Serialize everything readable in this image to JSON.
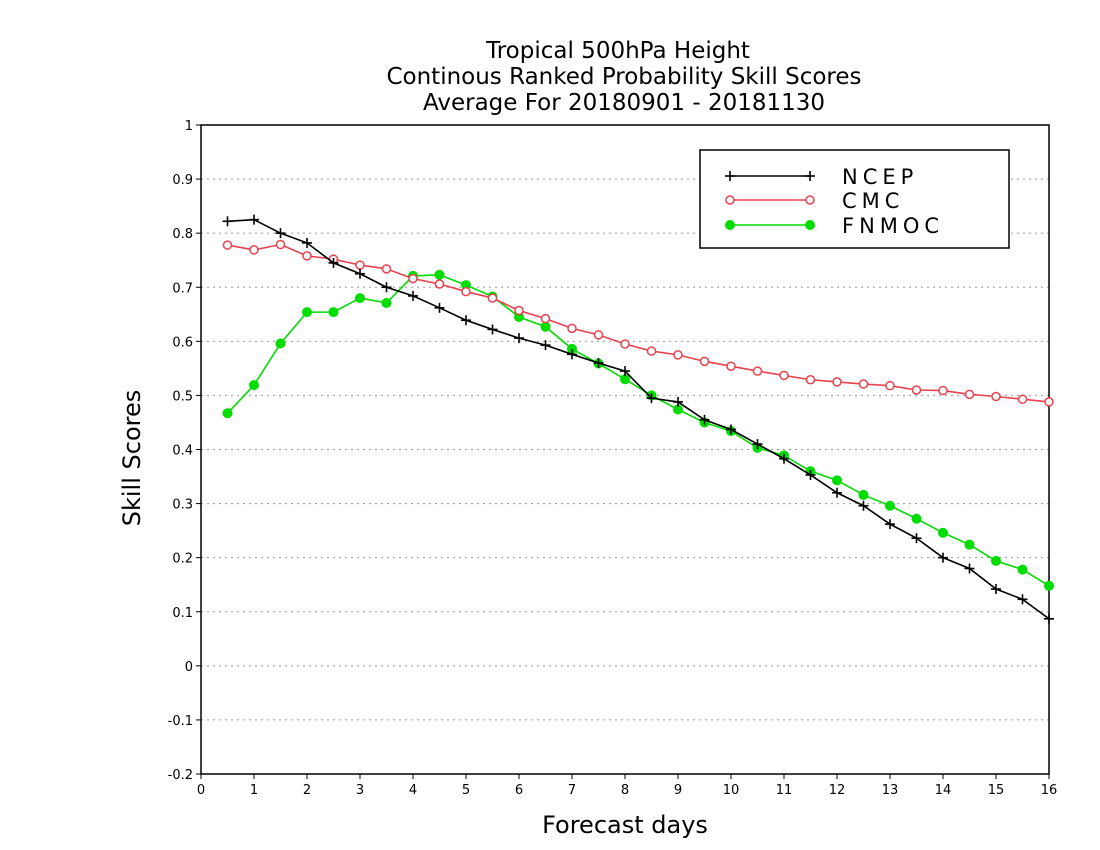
{
  "chart_data": {
    "type": "line",
    "title_lines": [
      "Tropical 500hPa Height",
      "Continous Ranked Probability Skill Scores",
      "Average For 20180901 - 20181130"
    ],
    "xlabel": "Forecast days",
    "ylabel": "Skill Scores",
    "xlim": [
      0,
      16
    ],
    "ylim": [
      -0.2,
      1
    ],
    "x_ticks": [
      0,
      1,
      2,
      3,
      4,
      5,
      6,
      7,
      8,
      9,
      10,
      11,
      12,
      13,
      14,
      15,
      16
    ],
    "x_tick_labels": [
      "0",
      "1",
      "2",
      "3",
      "4",
      "5",
      "6",
      "7",
      "8",
      "9",
      "10",
      "11",
      "12",
      "13",
      "14",
      "15",
      "16"
    ],
    "y_ticks": [
      -0.2,
      -0.1,
      0,
      0.1,
      0.2,
      0.3,
      0.4,
      0.5,
      0.6,
      0.7,
      0.8,
      0.9,
      1
    ],
    "y_tick_labels": [
      "-0.2",
      "-0.1",
      "0",
      "0.1",
      "0.2",
      "0.3",
      "0.4",
      "0.5",
      "0.6",
      "0.7",
      "0.8",
      "0.9",
      "1"
    ],
    "grid": "horizontal dotted",
    "legend_position": "top-right",
    "x": [
      0.5,
      1,
      1.5,
      2,
      2.5,
      3,
      3.5,
      4,
      4.5,
      5,
      5.5,
      6,
      6.5,
      7,
      7.5,
      8,
      8.5,
      9,
      9.5,
      10,
      10.5,
      11,
      11.5,
      12,
      12.5,
      13,
      13.5,
      14,
      14.5,
      15,
      15.5,
      16
    ],
    "series": [
      {
        "name": "NCEP",
        "color": "#000000",
        "marker": "plus",
        "values": [
          0.822,
          0.825,
          0.8,
          0.782,
          0.745,
          0.725,
          0.7,
          0.684,
          0.662,
          0.639,
          0.622,
          0.606,
          0.593,
          0.576,
          0.56,
          0.545,
          0.495,
          0.488,
          0.455,
          0.437,
          0.41,
          0.383,
          0.353,
          0.32,
          0.296,
          0.262,
          0.236,
          0.2,
          0.18,
          0.142,
          0.123,
          0.087
        ]
      },
      {
        "name": "CMC",
        "color": "#e8414f",
        "marker": "open-circle",
        "values": [
          0.778,
          0.769,
          0.779,
          0.758,
          0.752,
          0.741,
          0.734,
          0.716,
          0.706,
          0.692,
          0.68,
          0.657,
          0.642,
          0.624,
          0.612,
          0.595,
          0.582,
          0.575,
          0.563,
          0.554,
          0.545,
          0.537,
          0.529,
          0.525,
          0.521,
          0.518,
          0.51,
          0.509,
          0.502,
          0.498,
          0.493,
          0.488
        ]
      },
      {
        "name": "FNMOC",
        "color": "#00dd00",
        "marker": "filled-circle",
        "values": [
          0.467,
          0.519,
          0.596,
          0.654,
          0.654,
          0.68,
          0.671,
          0.721,
          0.723,
          0.704,
          0.683,
          0.645,
          0.627,
          0.586,
          0.559,
          0.53,
          0.5,
          0.474,
          0.45,
          0.434,
          0.403,
          0.389,
          0.36,
          0.343,
          0.316,
          0.296,
          0.272,
          0.246,
          0.224,
          0.194,
          0.178,
          0.148
        ]
      }
    ]
  }
}
